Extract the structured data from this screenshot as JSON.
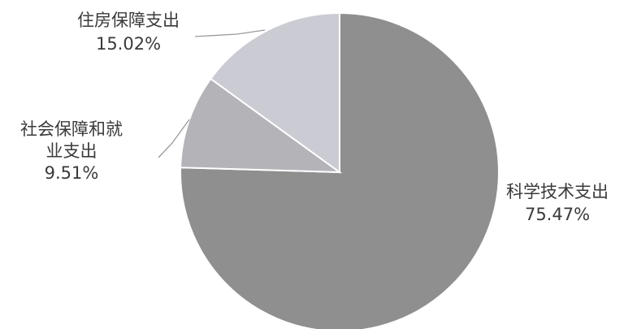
{
  "chart_data": {
    "type": "pie",
    "title": "",
    "start_angle_deg": 0,
    "direction": "clockwise",
    "slices": [
      {
        "label_lines": [
          "科学技术支出"
        ],
        "value": 75.47,
        "value_label": "75.47%",
        "color": "#8f8f8f",
        "leader": false
      },
      {
        "label_lines": [
          "社会保障和就",
          "业支出"
        ],
        "value": 9.51,
        "value_label": "9.51%",
        "color": "#b3b3b8",
        "leader": true
      },
      {
        "label_lines": [
          "住房保障支出"
        ],
        "value": 15.02,
        "value_label": "15.02%",
        "color": "#cbcbd3",
        "leader": true
      }
    ]
  }
}
